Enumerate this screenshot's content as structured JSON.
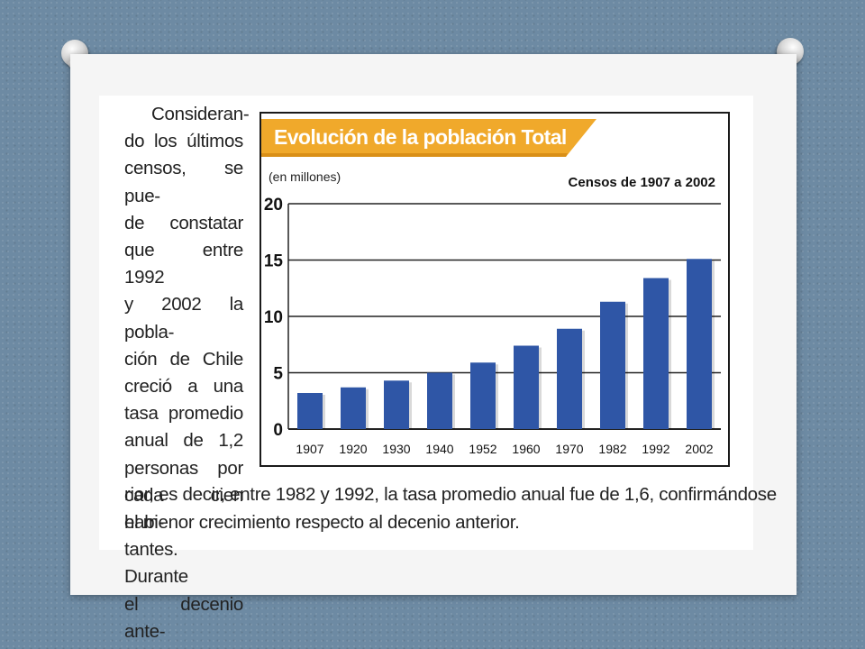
{
  "paragraph": {
    "column_lines": [
      "Consideran-",
      "do los últimos",
      "censos, se pue-",
      "de constatar",
      "que entre 1992",
      "y 2002 la pobla-",
      "ción de Chile",
      "creció a una",
      "tasa promedio",
      "anual de 1,2",
      "personas por",
      "cada cien habi-",
      "tantes. Durante",
      "el decenio ante-"
    ],
    "bottom_lines": [
      "rior, es decir, entre 1982 y 1992, la tasa promedio anual fue de 1,6, confirmándose",
      "el menor crecimiento respecto al decenio anterior."
    ]
  },
  "chart_data": {
    "type": "bar",
    "title": "Evolución de la población Total",
    "subtitle": "Censos de 1907 a 2002",
    "ylabel": "(en millones)",
    "categories": [
      "1907",
      "1920",
      "1930",
      "1940",
      "1952",
      "1960",
      "1970",
      "1982",
      "1992",
      "2002"
    ],
    "values": [
      3.2,
      3.7,
      4.3,
      5.0,
      5.9,
      7.4,
      8.9,
      11.3,
      13.4,
      15.1
    ],
    "ylim": [
      0,
      20
    ],
    "yticks": [
      "0",
      "5",
      "10",
      "15",
      "20"
    ],
    "grid": true,
    "colors": {
      "bar": "#2f56a6",
      "banner": "#f0a92b",
      "gridline": "#222222"
    }
  }
}
